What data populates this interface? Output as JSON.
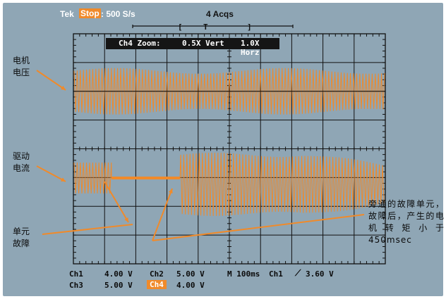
{
  "header": {
    "brand": "Tek",
    "status": "Stop",
    "sample_rate": ": 500 S/s",
    "acquisitions": "4 Acqs"
  },
  "zoom_bar": {
    "label": "Ch4 Zoom:",
    "vert": "0.5X Vert",
    "horz": "1.0X Horz"
  },
  "labels": {
    "motor_voltage": "电机\n电压",
    "drive_current": "驱动\n电流",
    "unit_fault": "单元\n故障",
    "annotation": "旁通的故障单元，故障后，产生的电机转矩小于450msec"
  },
  "readouts": {
    "row1": [
      {
        "ch": "Ch1",
        "val": "4.00 V"
      },
      {
        "ch": "Ch2",
        "val": "5.00 V"
      },
      {
        "ch": "M 100ms",
        "val": "Ch1"
      },
      {
        "ch": "",
        "val": "3.60 V"
      }
    ],
    "row2": [
      {
        "ch": "Ch3",
        "val": "5.00 V"
      },
      {
        "ch": "Ch4",
        "val": "4.00 V"
      }
    ]
  },
  "colors": {
    "trace": "#f08a2a",
    "screen_bg": "#8fa6b5",
    "grid": "#111111"
  }
}
